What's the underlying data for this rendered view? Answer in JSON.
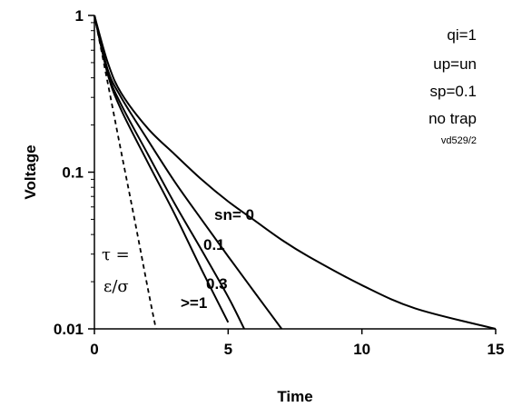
{
  "chart_data": {
    "type": "line",
    "xlabel": "Time",
    "ylabel": "Voltage",
    "xlim": [
      0,
      15
    ],
    "ylim": [
      0.01,
      1
    ],
    "y_scale": "log",
    "grid": false,
    "x_ticks": [
      "0",
      "5",
      "10",
      "15"
    ],
    "y_ticks": [
      "0.01",
      "0.1",
      "1"
    ],
    "annotations": [
      "qi=1",
      "up=un",
      "sp=0.1",
      "no trap",
      "vd529/2"
    ],
    "tau_label": [
      "τ =",
      "ε/σ"
    ],
    "series": [
      {
        "name": "sn= 0",
        "style": "solid",
        "x": [
          0,
          0.5,
          1,
          2,
          3,
          4,
          5,
          6,
          7,
          8,
          10,
          12,
          15
        ],
        "y": [
          1,
          0.5,
          0.32,
          0.19,
          0.13,
          0.09,
          0.065,
          0.049,
          0.037,
          0.029,
          0.019,
          0.0135,
          0.01
        ]
      },
      {
        "name": "0.1",
        "style": "solid",
        "x": [
          0,
          0.5,
          1,
          2,
          3,
          4,
          5,
          6,
          7
        ],
        "y": [
          1,
          0.45,
          0.3,
          0.16,
          0.087,
          0.05,
          0.029,
          0.017,
          0.01
        ]
      },
      {
        "name": "0.3",
        "style": "solid",
        "x": [
          0,
          0.5,
          1,
          2,
          3,
          4,
          5,
          5.6
        ],
        "y": [
          1,
          0.43,
          0.27,
          0.13,
          0.063,
          0.032,
          0.016,
          0.01
        ]
      },
      {
        "name": ">=1",
        "style": "solid",
        "x": [
          0,
          0.5,
          1,
          2,
          3,
          4,
          5
        ],
        "y": [
          1,
          0.42,
          0.25,
          0.115,
          0.054,
          0.024,
          0.011
        ]
      },
      {
        "name": "τ = ε/σ",
        "style": "dashed",
        "x": [
          0,
          0.5,
          1,
          1.5,
          2,
          2.3
        ],
        "y": [
          1,
          0.37,
          0.135,
          0.05,
          0.018,
          0.01
        ]
      }
    ]
  }
}
